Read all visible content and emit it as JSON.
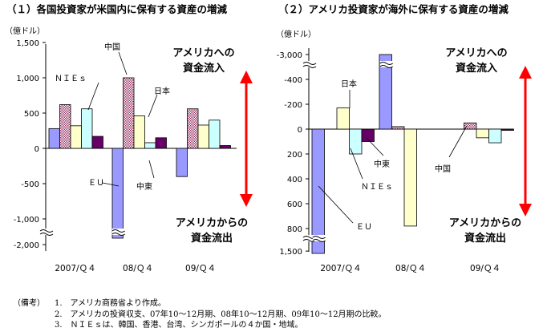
{
  "colors": {
    "series_colors": [
      "#9999ff",
      "#ff99cc",
      "#ffffcc",
      "#ccffff",
      "#660066"
    ],
    "hatch": "#993366",
    "arrow": "#ff0000",
    "axis": "#000000"
  },
  "chart_data": [
    {
      "type": "bar",
      "title": "（１）各国投資家が米国内に保有する資産の増減",
      "unit_label": "（億ドル）",
      "categories": [
        "2007/Ｑ４",
        "08/Ｑ４",
        "09/Ｑ４"
      ],
      "series": [
        {
          "name": "ＥＵ",
          "values": [
            280,
            -2500,
            -400
          ]
        },
        {
          "name": "中国",
          "values": [
            620,
            1000,
            560
          ]
        },
        {
          "name": "日本",
          "values": [
            320,
            460,
            330
          ]
        },
        {
          "name": "ＮＩＥｓ",
          "values": [
            560,
            80,
            400
          ]
        },
        {
          "name": "中東",
          "values": [
            170,
            150,
            40
          ]
        }
      ],
      "hatched_series": "中国",
      "y_ticks": [
        {
          "value": 1500,
          "label": "1,500"
        },
        {
          "value": 1000,
          "label": "1,000"
        },
        {
          "value": 500,
          "label": "500"
        },
        {
          "value": 0,
          "label": "0"
        },
        {
          "value": -500,
          "label": "-500"
        },
        {
          "value": -1000,
          "label": "-1,000"
        },
        {
          "value": -2000,
          "label": "-2,000"
        }
      ],
      "axis_break": "between -1,000 and -2,000",
      "ylim": [
        -2100,
        1500
      ],
      "annotations": {
        "inflow": [
          "アメリカへの",
          "資金流入"
        ],
        "outflow": [
          "アメリカからの",
          "資金流出"
        ]
      },
      "grid": false,
      "legend": "callout labels on bars"
    },
    {
      "type": "bar",
      "title": "（２）アメリカ投資家が海外に保有する資産の増減",
      "unit_label": "（億ドル）",
      "categories": [
        "2007/Ｑ４",
        "08/Ｑ４",
        "09/Ｑ４"
      ],
      "series": [
        {
          "name": "ＥＵ",
          "values": [
            1500,
            -3000,
            0
          ]
        },
        {
          "name": "中国",
          "values": [
            0,
            -20,
            -50
          ]
        },
        {
          "name": "日本",
          "values": [
            -170,
            780,
            70
          ]
        },
        {
          "name": "ＮＩＥｓ",
          "values": [
            200,
            0,
            110
          ]
        },
        {
          "name": "中東",
          "values": [
            100,
            0,
            10
          ]
        }
      ],
      "hatched_series": "中国",
      "y_axis_note": "reversed axis: negative values (outflow from foreign assets = inflow to US) plotted upward",
      "y_ticks": [
        {
          "value": -3000,
          "label": "-3,000"
        },
        {
          "value": -400,
          "label": "-400"
        },
        {
          "value": -200,
          "label": "-200"
        },
        {
          "value": 0,
          "label": "0"
        },
        {
          "value": 200,
          "label": "200"
        },
        {
          "value": 400,
          "label": "400"
        },
        {
          "value": 600,
          "label": "600"
        },
        {
          "value": 800,
          "label": "800"
        },
        {
          "value": 1500,
          "label": "1,500"
        }
      ],
      "axis_break": "between -400 and -3,000 and between 800 and 1,500",
      "ylim": [
        -3000,
        1500
      ],
      "annotations": {
        "inflow": [
          "アメリカへの",
          "資金流入"
        ],
        "outflow": [
          "アメリカからの",
          "資金流出"
        ]
      },
      "grid": false,
      "legend": "callout labels on bars"
    }
  ],
  "notes": {
    "lead": "（備考）",
    "items": [
      "1.　アメリカ商務省より作成。",
      "2.　アメリカの投資収支、07年10～12月期、08年10～12月期、09年10～12月期の比較。",
      "3.　ＮＩＥｓは、韓国、香港、台湾、シンガポールの４か国・地域。"
    ]
  }
}
